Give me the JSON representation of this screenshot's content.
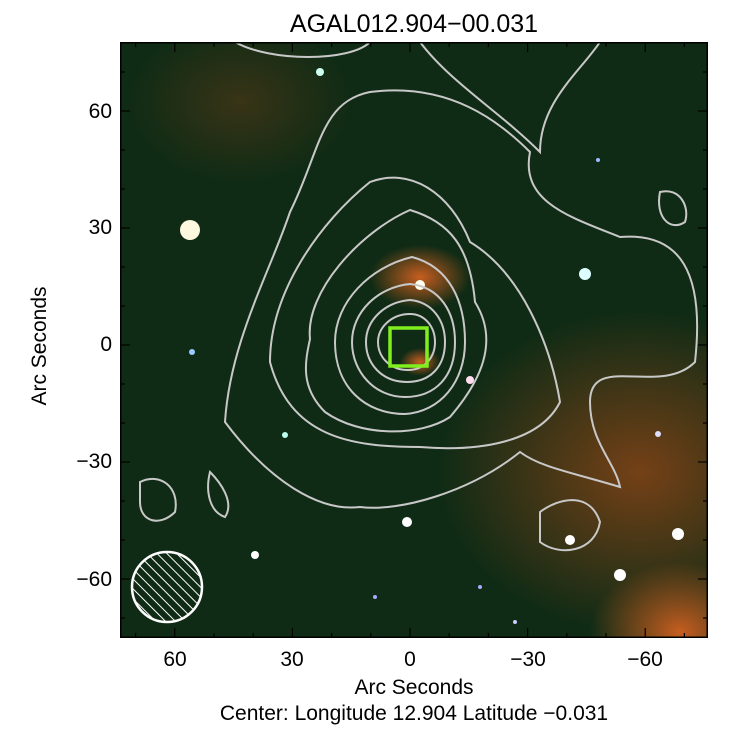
{
  "title": "AGAL012.904−00.031",
  "x_axis": {
    "label": "Arc Seconds",
    "ticks": [
      "60",
      "30",
      "0",
      "−30",
      "−60"
    ],
    "tick_values": [
      60,
      30,
      0,
      -30,
      -60
    ],
    "range": [
      75,
      -75
    ]
  },
  "y_axis": {
    "label": "Arc Seconds",
    "ticks": [
      "60",
      "30",
      "0",
      "−30",
      "−60"
    ],
    "tick_values": [
      60,
      30,
      0,
      -30,
      -60
    ],
    "range": [
      -75,
      77
    ]
  },
  "caption": "Center:  Longitude 12.904 Latitude −0.031",
  "colors": {
    "background": "#0f2a14",
    "contour": "#c8c8c8",
    "marker": "#7ff01e",
    "emission": "#c8521a"
  },
  "marker_icon": "square-marker",
  "beam_icon": "hatched-circle"
}
